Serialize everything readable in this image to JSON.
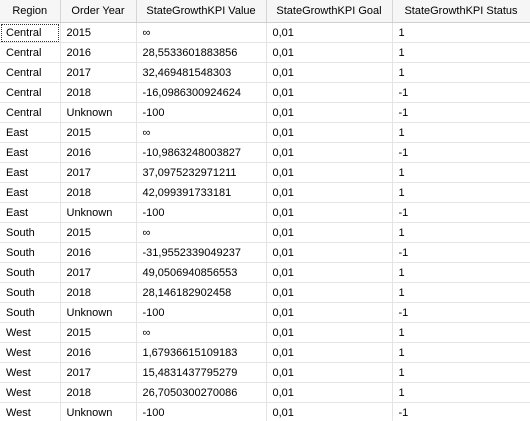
{
  "grid": {
    "columns": [
      "Region",
      "Order Year",
      "StateGrowthKPI Value",
      "StateGrowthKPI Goal",
      "StateGrowthKPI Status"
    ],
    "rows": [
      [
        "Central",
        "2015",
        "∞",
        "0,01",
        "1"
      ],
      [
        "Central",
        "2016",
        "28,5533601883856",
        "0,01",
        "1"
      ],
      [
        "Central",
        "2017",
        "32,469481548303",
        "0,01",
        "1"
      ],
      [
        "Central",
        "2018",
        "-16,0986300924624",
        "0,01",
        "-1"
      ],
      [
        "Central",
        "Unknown",
        "-100",
        "0,01",
        "-1"
      ],
      [
        "East",
        "2015",
        "∞",
        "0,01",
        "1"
      ],
      [
        "East",
        "2016",
        "-10,9863248003827",
        "0,01",
        "-1"
      ],
      [
        "East",
        "2017",
        "37,0975232971211",
        "0,01",
        "1"
      ],
      [
        "East",
        "2018",
        "42,099391733181",
        "0,01",
        "1"
      ],
      [
        "East",
        "Unknown",
        "-100",
        "0,01",
        "-1"
      ],
      [
        "South",
        "2015",
        "∞",
        "0,01",
        "1"
      ],
      [
        "South",
        "2016",
        "-31,9552339049237",
        "0,01",
        "-1"
      ],
      [
        "South",
        "2017",
        "49,0506940856553",
        "0,01",
        "1"
      ],
      [
        "South",
        "2018",
        "28,146182902458",
        "0,01",
        "1"
      ],
      [
        "South",
        "Unknown",
        "-100",
        "0,01",
        "-1"
      ],
      [
        "West",
        "2015",
        "∞",
        "0,01",
        "1"
      ],
      [
        "West",
        "2016",
        "1,67936615109183",
        "0,01",
        "1"
      ],
      [
        "West",
        "2017",
        "15,4831437795279",
        "0,01",
        "1"
      ],
      [
        "West",
        "2018",
        "26,7050300270086",
        "0,01",
        "1"
      ],
      [
        "West",
        "Unknown",
        "-100",
        "0,01",
        "-1"
      ]
    ]
  }
}
